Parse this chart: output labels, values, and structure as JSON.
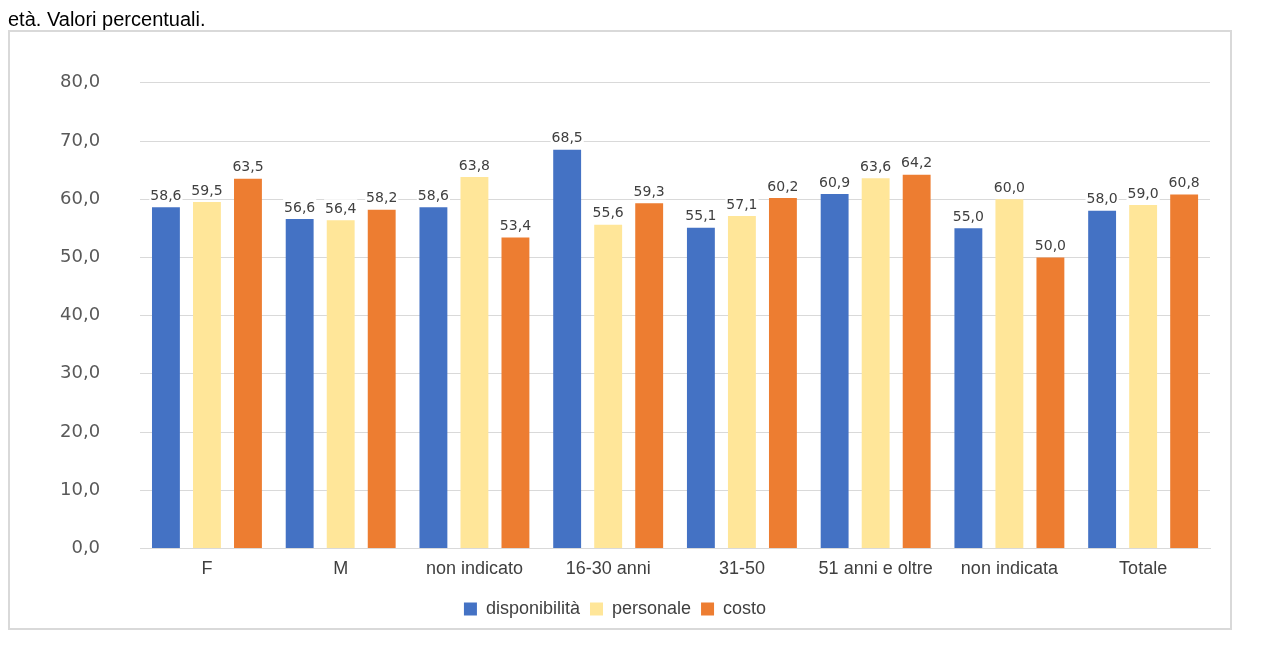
{
  "chart_data": {
    "type": "bar",
    "title": "età. Valori percentuali.",
    "categories": [
      "F",
      "M",
      "non indicato",
      "16-30 anni",
      "31-50",
      "51 anni e oltre",
      "non indicata",
      "Totale"
    ],
    "series": [
      {
        "name": "disponibilità",
        "color": "#4472c4",
        "values": [
          58.6,
          56.6,
          58.6,
          68.5,
          55.1,
          60.9,
          55.0,
          58.0
        ],
        "value_labels": [
          "58,6",
          "56,6",
          "58,6",
          "68,5",
          "55,1",
          "60,9",
          "55,0",
          "58,0"
        ]
      },
      {
        "name": "personale",
        "color": "#ffe699",
        "values": [
          59.5,
          56.4,
          63.8,
          55.6,
          57.1,
          63.6,
          60.0,
          59.0
        ],
        "value_labels": [
          "59,5",
          "56,4",
          "63,8",
          "55,6",
          "57,1",
          "63,6",
          "60,0",
          "59,0"
        ]
      },
      {
        "name": "costo",
        "color": "#ed7d31",
        "values": [
          63.5,
          58.2,
          53.4,
          59.3,
          60.2,
          64.2,
          50.0,
          60.8
        ],
        "value_labels": [
          "63,5",
          "58,2",
          "53,4",
          "59,3",
          "60,2",
          "64,2",
          "50,0",
          "60,8"
        ]
      }
    ],
    "ylim": [
      0,
      80
    ],
    "yticks": [
      {
        "value": 0,
        "label": "0,0"
      },
      {
        "value": 10,
        "label": "10,0"
      },
      {
        "value": 20,
        "label": "20,0"
      },
      {
        "value": 30,
        "label": "30,0"
      },
      {
        "value": 40,
        "label": "40,0"
      },
      {
        "value": 50,
        "label": "50,0"
      },
      {
        "value": 60,
        "label": "60,0"
      },
      {
        "value": 70,
        "label": "70,0"
      },
      {
        "value": 80,
        "label": "80,0"
      }
    ],
    "grid": "y",
    "legend": "bottom"
  }
}
